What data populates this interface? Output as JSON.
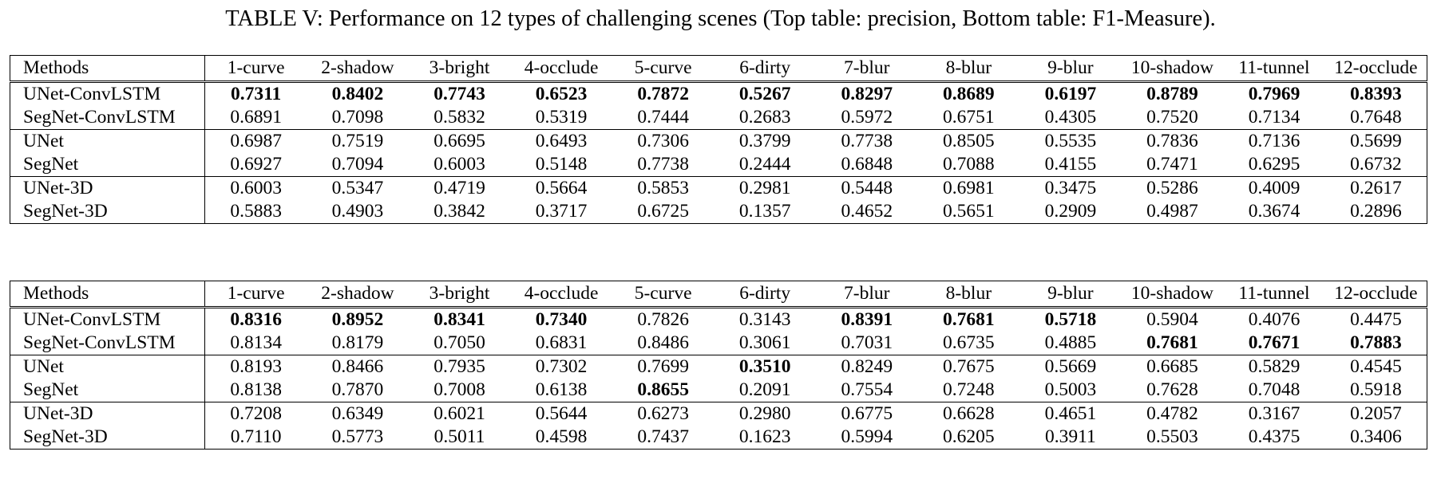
{
  "caption": "TABLE V: Performance on 12 types of challenging scenes (Top table: precision, Bottom table: F1-Measure).",
  "columns": [
    "Methods",
    "1-curve",
    "2-shadow",
    "3-bright",
    "4-occlude",
    "5-curve",
    "6-dirty",
    "7-blur",
    "8-blur",
    "9-blur",
    "10-shadow",
    "11-tunnel",
    "12-occlude"
  ],
  "precision_table": {
    "rows": [
      {
        "method": "UNet-ConvLSTM",
        "values": [
          "0.7311",
          "0.8402",
          "0.7743",
          "0.6523",
          "0.7872",
          "0.5267",
          "0.8297",
          "0.8689",
          "0.6197",
          "0.8789",
          "0.7969",
          "0.8393"
        ],
        "bold": [
          true,
          true,
          true,
          true,
          true,
          true,
          true,
          true,
          true,
          true,
          true,
          true
        ]
      },
      {
        "method": "SegNet-ConvLSTM",
        "values": [
          "0.6891",
          "0.7098",
          "0.5832",
          "0.5319",
          "0.7444",
          "0.2683",
          "0.5972",
          "0.6751",
          "0.4305",
          "0.7520",
          "0.7134",
          "0.7648"
        ],
        "bold": [
          false,
          false,
          false,
          false,
          false,
          false,
          false,
          false,
          false,
          false,
          false,
          false
        ]
      },
      {
        "method": "UNet",
        "values": [
          "0.6987",
          "0.7519",
          "0.6695",
          "0.6493",
          "0.7306",
          "0.3799",
          "0.7738",
          "0.8505",
          "0.5535",
          "0.7836",
          "0.7136",
          "0.5699"
        ],
        "bold": [
          false,
          false,
          false,
          false,
          false,
          false,
          false,
          false,
          false,
          false,
          false,
          false
        ]
      },
      {
        "method": "SegNet",
        "values": [
          "0.6927",
          "0.7094",
          "0.6003",
          "0.5148",
          "0.7738",
          "0.2444",
          "0.6848",
          "0.7088",
          "0.4155",
          "0.7471",
          "0.6295",
          "0.6732"
        ],
        "bold": [
          false,
          false,
          false,
          false,
          false,
          false,
          false,
          false,
          false,
          false,
          false,
          false
        ]
      },
      {
        "method": "UNet-3D",
        "values": [
          "0.6003",
          "0.5347",
          "0.4719",
          "0.5664",
          "0.5853",
          "0.2981",
          "0.5448",
          "0.6981",
          "0.3475",
          "0.5286",
          "0.4009",
          "0.2617"
        ],
        "bold": [
          false,
          false,
          false,
          false,
          false,
          false,
          false,
          false,
          false,
          false,
          false,
          false
        ]
      },
      {
        "method": "SegNet-3D",
        "values": [
          "0.5883",
          "0.4903",
          "0.3842",
          "0.3717",
          "0.6725",
          "0.1357",
          "0.4652",
          "0.5651",
          "0.2909",
          "0.4987",
          "0.3674",
          "0.2896"
        ],
        "bold": [
          false,
          false,
          false,
          false,
          false,
          false,
          false,
          false,
          false,
          false,
          false,
          false
        ]
      }
    ]
  },
  "f1_table": {
    "rows": [
      {
        "method": "UNet-ConvLSTM",
        "values": [
          "0.8316",
          "0.8952",
          "0.8341",
          "0.7340",
          "0.7826",
          "0.3143",
          "0.8391",
          "0.7681",
          "0.5718",
          "0.5904",
          "0.4076",
          "0.4475"
        ],
        "bold": [
          true,
          true,
          true,
          true,
          false,
          false,
          true,
          true,
          true,
          false,
          false,
          false
        ]
      },
      {
        "method": "SegNet-ConvLSTM",
        "values": [
          "0.8134",
          "0.8179",
          "0.7050",
          "0.6831",
          "0.8486",
          "0.3061",
          "0.7031",
          "0.6735",
          "0.4885",
          "0.7681",
          "0.7671",
          "0.7883"
        ],
        "bold": [
          false,
          false,
          false,
          false,
          false,
          false,
          false,
          false,
          false,
          true,
          true,
          true
        ]
      },
      {
        "method": "UNet",
        "values": [
          "0.8193",
          "0.8466",
          "0.7935",
          "0.7302",
          "0.7699",
          "0.3510",
          "0.8249",
          "0.7675",
          "0.5669",
          "0.6685",
          "0.5829",
          "0.4545"
        ],
        "bold": [
          false,
          false,
          false,
          false,
          false,
          true,
          false,
          false,
          false,
          false,
          false,
          false
        ]
      },
      {
        "method": "SegNet",
        "values": [
          "0.8138",
          "0.7870",
          "0.7008",
          "0.6138",
          "0.8655",
          "0.2091",
          "0.7554",
          "0.7248",
          "0.5003",
          "0.7628",
          "0.7048",
          "0.5918"
        ],
        "bold": [
          false,
          false,
          false,
          false,
          true,
          false,
          false,
          false,
          false,
          false,
          false,
          false
        ]
      },
      {
        "method": "UNet-3D",
        "values": [
          "0.7208",
          "0.6349",
          "0.6021",
          "0.5644",
          "0.6273",
          "0.2980",
          "0.6775",
          "0.6628",
          "0.4651",
          "0.4782",
          "0.3167",
          "0.2057"
        ],
        "bold": [
          false,
          false,
          false,
          false,
          false,
          false,
          false,
          false,
          false,
          false,
          false,
          false
        ]
      },
      {
        "method": "SegNet-3D",
        "values": [
          "0.7110",
          "0.5773",
          "0.5011",
          "0.4598",
          "0.7437",
          "0.1623",
          "0.5994",
          "0.6205",
          "0.3911",
          "0.5503",
          "0.4375",
          "0.3406"
        ],
        "bold": [
          false,
          false,
          false,
          false,
          false,
          false,
          false,
          false,
          false,
          false,
          false,
          false
        ]
      }
    ]
  }
}
